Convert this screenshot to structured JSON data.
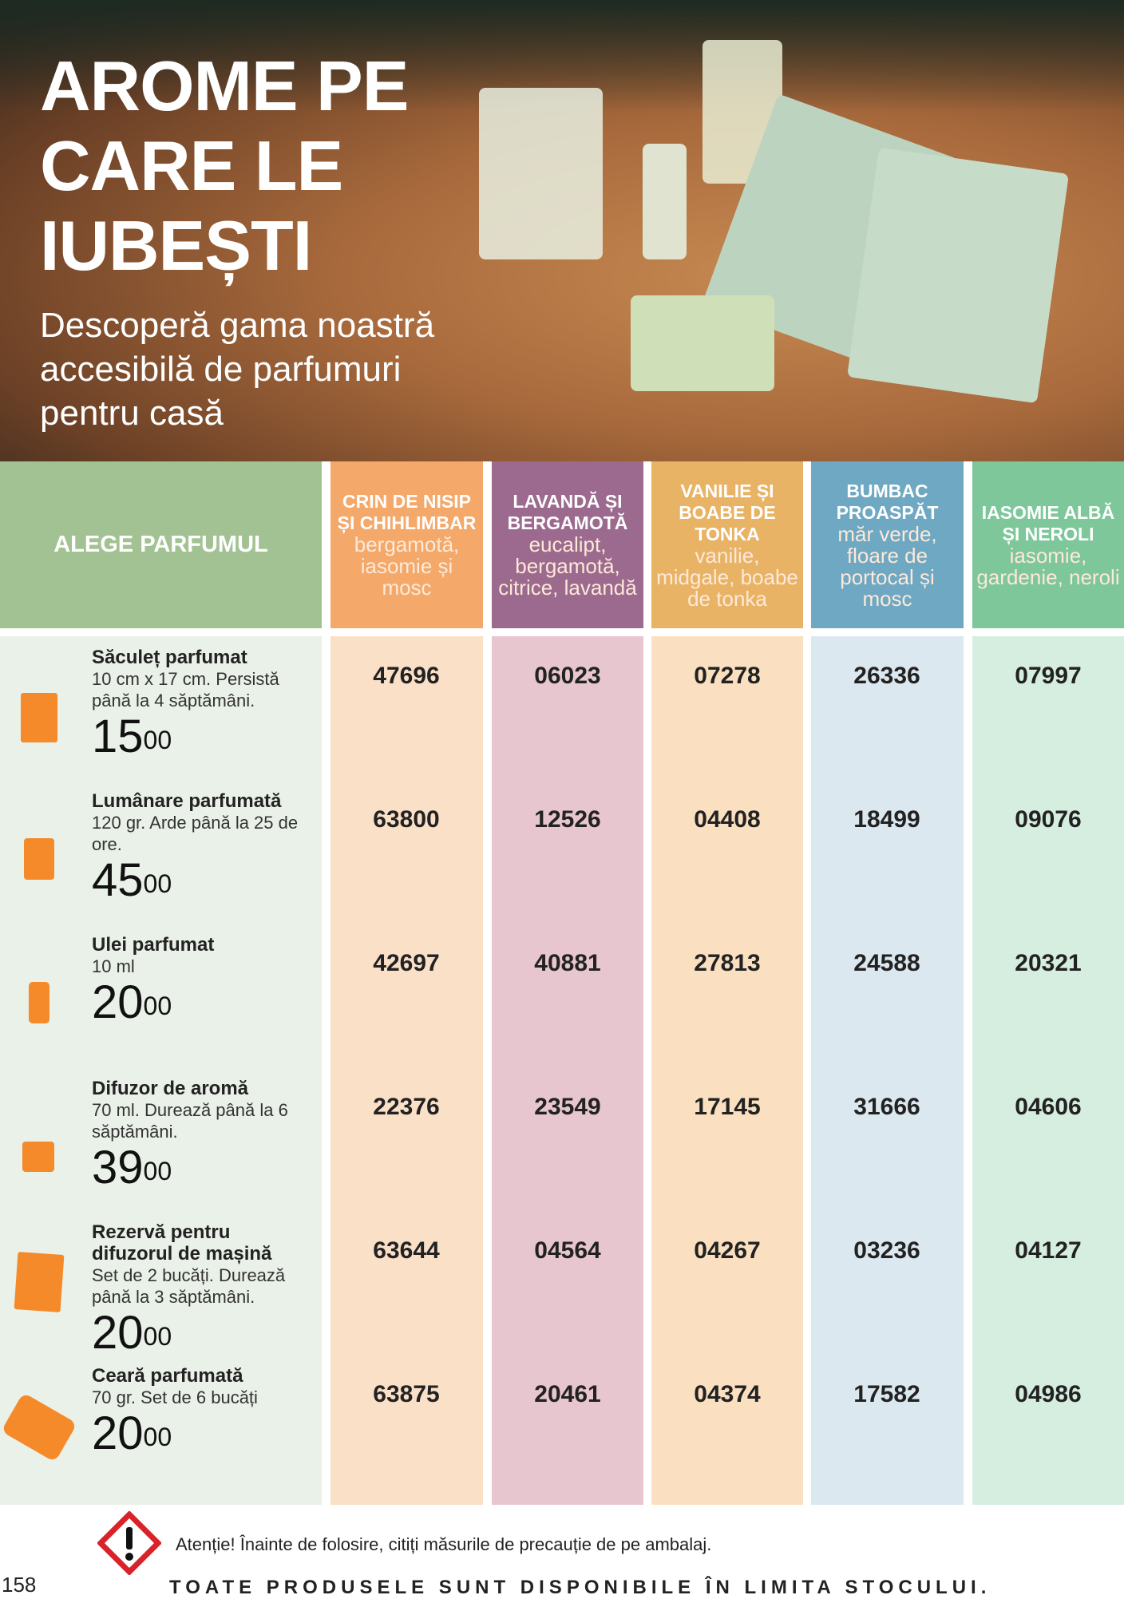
{
  "hero": {
    "title_lines": [
      "AROME PE",
      "CARE LE",
      "IUBEȘTI"
    ],
    "subtitle_lines": [
      "Descoperă gama noastră",
      "accesibilă de parfumuri",
      "pentru casă"
    ]
  },
  "table": {
    "lead_header": "ALEGE PARFUMUL",
    "columns": [
      {
        "name": "CRIN DE NISIP ȘI CHIHLIMBAR",
        "notes": "bergamotă, iasomie și mosc",
        "color": "#f4a96a",
        "tint": "#fbe0c8"
      },
      {
        "name": "LAVANDĂ ȘI BERGAMOTĂ",
        "notes": "eucalipt, bergamotă, citrice, lavandă",
        "color": "#9c6a8e",
        "tint": "#e8c6d0"
      },
      {
        "name": "VANILIE ȘI BOABE DE TONKA",
        "notes": "vanilie, midgale, boabe de tonka",
        "color": "#e9b366",
        "tint": "#fae0c0"
      },
      {
        "name": "BUMBAC PROASPĂT",
        "notes": "măr verde, floare de portocal și mosc",
        "color": "#6ea8c2",
        "tint": "#dce8ef"
      },
      {
        "name": "IASOMIE ALBĂ ȘI NEROLI",
        "notes": "iasomie, gardenie, neroli",
        "color": "#7dc79b",
        "tint": "#d5eedf"
      }
    ],
    "rows": [
      {
        "name": "Săculeț parfumat",
        "desc": "10 cm x 17 cm. Persistă până la 4 săptămâni.",
        "price": "15",
        "cents": "00",
        "icon": "sachet-icon",
        "codes": [
          "47696",
          "06023",
          "07278",
          "26336",
          "07997"
        ]
      },
      {
        "name": "Lumânare parfumată",
        "desc": "120 gr. Arde până la 25 de ore.",
        "price": "45",
        "cents": "00",
        "icon": "candle-icon",
        "codes": [
          "63800",
          "12526",
          "04408",
          "18499",
          "09076"
        ]
      },
      {
        "name": "Ulei parfumat",
        "desc": "10 ml",
        "price": "20",
        "cents": "00",
        "icon": "oil-bottle-icon",
        "codes": [
          "42697",
          "40881",
          "27813",
          "24588",
          "20321"
        ]
      },
      {
        "name": "Difuzor de aromă",
        "desc": "70 ml. Durează până la 6 săptămâni.",
        "price": "39",
        "cents": "00",
        "icon": "reed-diffuser-icon",
        "codes": [
          "22376",
          "23549",
          "17145",
          "31666",
          "04606"
        ]
      },
      {
        "name": "Rezervă pentru difuzorul de mașină",
        "desc": "Set de 2 bucăți. Durează până la 3 săptămâni.",
        "price": "20",
        "cents": "00",
        "icon": "car-refill-icon",
        "codes": [
          "63644",
          "04564",
          "04267",
          "03236",
          "04127"
        ]
      },
      {
        "name": "Ceară parfumată",
        "desc": "70 gr. Set de 6 bucăți",
        "price": "20",
        "cents": "00",
        "icon": "wax-melt-icon",
        "codes": [
          "63875",
          "20461",
          "04374",
          "17582",
          "04986"
        ]
      }
    ]
  },
  "footer": {
    "warning": "Atenție! Înainte de folosire, citiți măsurile de precauție de pe ambalaj.",
    "page_number": "158",
    "stock_note": "TOATE PRODUSELE SUNT DISPONIBILE ÎN LIMITA STOCULUI."
  }
}
